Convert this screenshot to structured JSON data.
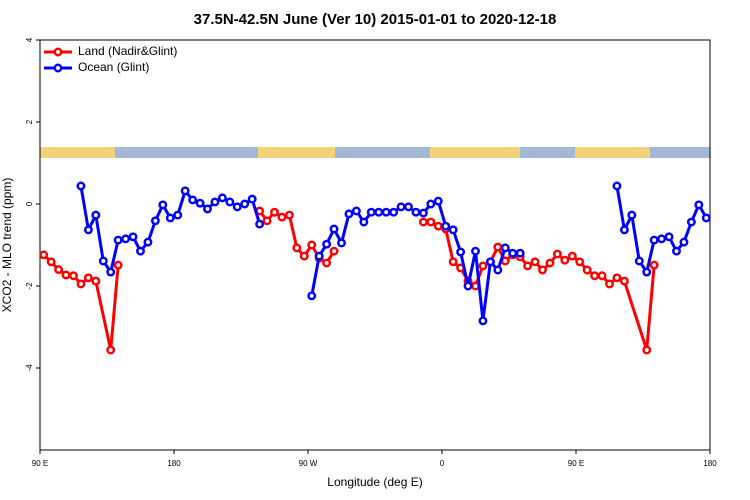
{
  "chart_data": {
    "type": "line",
    "title": "37.5N-42.5N June (Ver 10)   2015-01-01 to 2020-12-18",
    "xlabel": "Longitude (deg E)",
    "ylabel": "XCO2 - MLO trend (ppm)",
    "xlim": [
      90,
      540
    ],
    "ylim": [
      -6,
      4
    ],
    "xticks": [
      {
        "value": 90,
        "label": "90 E"
      },
      {
        "value": 180,
        "label": "180"
      },
      {
        "value": 270,
        "label": "90 W"
      },
      {
        "value": 360,
        "label": "0"
      },
      {
        "value": 450,
        "label": "90 E"
      },
      {
        "value": 540,
        "label": "180"
      }
    ],
    "yticks": [
      -4,
      -2,
      0,
      2,
      4
    ],
    "legend": "top-left",
    "series": [
      {
        "name": "Land (Nadir&Glint)",
        "color": "#ff0000",
        "x": [
          92.5,
          97.5,
          102.5,
          107.5,
          112.5,
          117.5,
          122.5,
          127.5,
          137.5,
          142.5,
          null,
          237.5,
          242.5,
          247.5,
          252.5,
          257.5,
          262.5,
          267.5,
          272.5,
          277.5,
          282.5,
          287.5,
          null,
          347.5,
          352.5,
          357.5,
          362.5,
          367.5,
          372.5,
          377.5,
          382.5,
          387.5,
          392.5,
          397.5,
          402.5,
          407.5,
          412.5,
          417.5,
          422.5,
          427.5,
          432.5,
          437.5,
          442.5,
          447.5,
          452.5,
          457.5,
          462.5,
          467.5,
          472.5,
          477.5,
          482.5,
          497.5,
          502.5
        ],
        "values": [
          -1.24,
          -1.41,
          -1.6,
          -1.73,
          -1.75,
          -1.95,
          -1.8,
          -1.88,
          -3.56,
          -1.49,
          null,
          -0.17,
          -0.41,
          -0.2,
          -0.32,
          -0.27,
          -1.07,
          -1.27,
          -1.0,
          -1.32,
          -1.44,
          -1.15,
          null,
          -0.44,
          -0.44,
          -0.54,
          -0.61,
          -1.41,
          -1.56,
          -1.88,
          -2.0,
          -1.51,
          -1.41,
          -1.05,
          -1.39,
          -1.24,
          -1.29,
          -1.51,
          -1.41,
          -1.61,
          -1.44,
          -1.22,
          -1.37,
          -1.27,
          -1.41,
          -1.61,
          -1.75,
          -1.75,
          -1.95,
          -1.8,
          -1.88,
          -3.56,
          -1.49
        ]
      },
      {
        "name": "Ocean (Glint)",
        "color": "#0000ff",
        "x": [
          117.5,
          122.5,
          127.5,
          132.5,
          137.5,
          142.5,
          147.5,
          152.5,
          157.5,
          162.5,
          167.5,
          172.5,
          177.5,
          182.5,
          187.5,
          192.5,
          197.5,
          202.5,
          207.5,
          212.5,
          217.5,
          222.5,
          227.5,
          232.5,
          237.5,
          null,
          272.5,
          277.5,
          282.5,
          287.5,
          292.5,
          297.5,
          302.5,
          307.5,
          312.5,
          317.5,
          322.5,
          327.5,
          332.5,
          337.5,
          342.5,
          347.5,
          352.5,
          357.5,
          362.5,
          367.5,
          372.5,
          377.5,
          382.5,
          387.5,
          392.5,
          397.5,
          402.5,
          407.5,
          412.5,
          null,
          477.5,
          482.5,
          487.5,
          492.5,
          497.5,
          502.5,
          507.5,
          512.5,
          517.5,
          522.5,
          527.5,
          532.5,
          537.5
        ],
        "values": [
          0.44,
          -0.63,
          -0.27,
          -1.39,
          -1.66,
          -0.88,
          -0.85,
          -0.8,
          -1.15,
          -0.93,
          -0.41,
          -0.02,
          -0.34,
          -0.27,
          0.32,
          0.1,
          0.02,
          -0.12,
          0.05,
          0.15,
          0.05,
          -0.07,
          0,
          0.12,
          -0.49,
          null,
          -2.24,
          -1.27,
          -0.98,
          -0.61,
          -0.95,
          -0.24,
          -0.17,
          -0.44,
          -0.2,
          -0.2,
          -0.2,
          -0.2,
          -0.07,
          -0.07,
          -0.2,
          -0.22,
          0,
          0.07,
          -0.54,
          -0.63,
          -1.17,
          -2.0,
          -1.15,
          -2.85,
          -1.41,
          -1.61,
          -1.07,
          -1.2,
          -1.2,
          null,
          0.44,
          -0.63,
          -0.27,
          -1.39,
          -1.66,
          -0.88,
          -0.85,
          -0.8,
          -1.15,
          -0.93,
          -0.44,
          -0.02,
          -0.34
        ]
      }
    ]
  }
}
